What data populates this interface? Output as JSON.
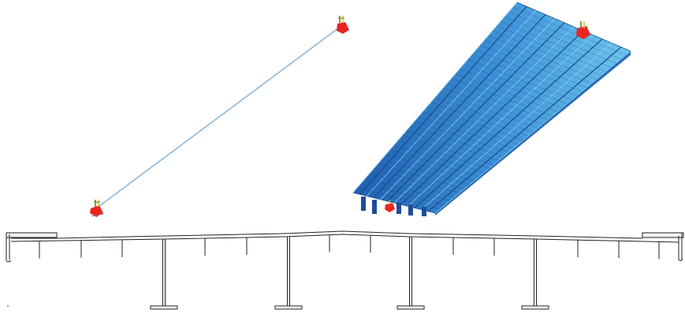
{
  "figure": {
    "panels": [
      {
        "key": "line_model",
        "element_type": "beam line element",
        "supports": 2,
        "support_color": "#e8261f",
        "line_color": "#8ab9d9"
      },
      {
        "key": "shell_model",
        "element_type": "shell/plate deck model",
        "supports": 2,
        "deck_color": "#3a8cd0",
        "support_color": "#e8261f"
      },
      {
        "key": "cross_section",
        "element_type": "bridge deck cross-section",
        "girders": 4,
        "stringers": 12,
        "parapets": 2
      }
    ]
  }
}
